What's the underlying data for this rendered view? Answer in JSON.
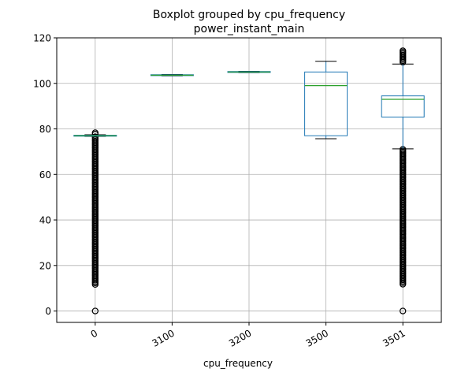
{
  "chart_data": {
    "type": "boxplot",
    "title": "Boxplot grouped by cpu_frequency",
    "subtitle": "power_instant_main",
    "xlabel": "cpu_frequency",
    "ylabel": "",
    "ylim": [
      -5,
      120
    ],
    "yticks": [
      0,
      20,
      40,
      60,
      80,
      100,
      120
    ],
    "grid": true,
    "categories": [
      "0",
      "3100",
      "3200",
      "3500",
      "3501"
    ],
    "boxes": [
      {
        "category": "0",
        "whisker_low": 76.7,
        "q1": 76.8,
        "median": 77.0,
        "q3": 77.2,
        "whisker_high": 77.4,
        "outliers_low_range": [
          11.5,
          76.5
        ],
        "outliers_high_range": [
          77.6,
          78.3
        ],
        "outliers_extra": [
          0
        ]
      },
      {
        "category": "3100",
        "whisker_low": 103.3,
        "q1": 103.4,
        "median": 103.6,
        "q3": 103.8,
        "whisker_high": 103.9,
        "outliers_low_range": null,
        "outliers_high_range": null,
        "outliers_extra": []
      },
      {
        "category": "3200",
        "whisker_low": 104.7,
        "q1": 104.8,
        "median": 105.0,
        "q3": 105.2,
        "whisker_high": 105.3,
        "outliers_low_range": null,
        "outliers_high_range": null,
        "outliers_extra": []
      },
      {
        "category": "3500",
        "whisker_low": 75.7,
        "q1": 77.0,
        "median": 99.0,
        "q3": 105.0,
        "whisker_high": 109.7,
        "outliers_low_range": null,
        "outliers_high_range": null,
        "outliers_extra": []
      },
      {
        "category": "3501",
        "whisker_low": 71.2,
        "q1": 85.2,
        "median": 93.0,
        "q3": 94.5,
        "whisker_high": 108.5,
        "outliers_low_range": [
          11.5,
          71.0
        ],
        "outliers_high_range": [
          109.3,
          114.3
        ],
        "outliers_extra": [
          0
        ]
      }
    ],
    "colors": {
      "box": "#1f77b4",
      "median": "#2ca02c",
      "whisker": "#1f77b4",
      "cap": "#000000",
      "flier": "#000000",
      "grid": "#b0b0b0",
      "axis": "#000000"
    }
  }
}
